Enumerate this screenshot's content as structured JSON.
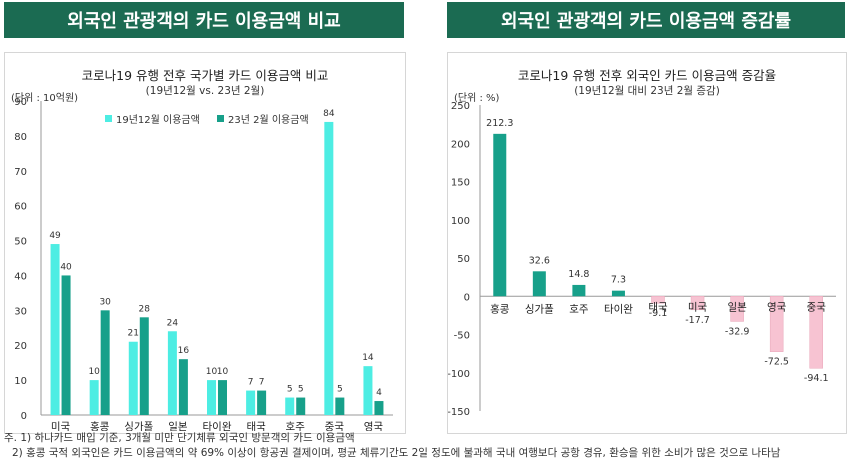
{
  "left": {
    "banner": "외국인 관광객의 카드 이용금액 비교",
    "chart_title": "코로나19 유행 전후 국가별 카드 이용금액 비교",
    "chart_subtitle": "(19년12월 vs. 23년 2월)",
    "unit": "(단위 : 10억원)"
  },
  "right": {
    "banner": "외국인 관광객의 카드 이용금액 증감률",
    "chart_title": "코로나19 유행 전후 외국인 카드 이용금액 증감율",
    "chart_subtitle": "(19년12월 대비 23년 2월 증감)",
    "unit": "(단위 : %)"
  },
  "notes": {
    "note1": "주. 1) 하나카드 매입 기준, 3개월 미만 단기체류 외국인 방문객의 카드 이용금액",
    "note2": "2) 홍콩 국적 외국인은 카드 이용금액의 약 69% 이상이 항공권 결제이며, 평균 체류기간도 2일 정도에 불과해 국내 여행보다 공항 경유, 환승을 위한 소비가 많은 것으로 나타남"
  },
  "colors": {
    "series1": "#4dede3",
    "series2": "#17a08a",
    "positive": "#17a08a",
    "negative": "#f7c3d2",
    "banner": "#1b6b52"
  },
  "chart_data": [
    {
      "type": "bar",
      "title": "코로나19 유행 전후 국가별 카드 이용금액 비교",
      "subtitle": "(19년12월 vs. 23년 2월)",
      "unit": "(단위 : 10억원)",
      "categories": [
        "미국",
        "홍콩",
        "싱가폴",
        "일본",
        "타이완",
        "태국",
        "호주",
        "중국",
        "영국"
      ],
      "series": [
        {
          "name": "19년12월 이용금액",
          "values": [
            49,
            10,
            21,
            24,
            10,
            7,
            5,
            84,
            14
          ]
        },
        {
          "name": "23년 2월 이용금액",
          "values": [
            40,
            30,
            28,
            16,
            10,
            7,
            5,
            5,
            4
          ]
        }
      ],
      "ylim": [
        0,
        90
      ],
      "yticks": [
        0,
        10,
        20,
        30,
        40,
        50,
        60,
        70,
        80,
        90
      ],
      "legend": "top"
    },
    {
      "type": "bar",
      "title": "코로나19 유행 전후 외국인 카드 이용금액 증감율",
      "subtitle": "(19년12월 대비 23년 2월 증감)",
      "unit": "(단위 : %)",
      "categories": [
        "홍콩",
        "싱가폴",
        "호주",
        "타이완",
        "태국",
        "미국",
        "일본",
        "영국",
        "중국"
      ],
      "values": [
        212.3,
        32.6,
        14.8,
        7.3,
        -9.1,
        -17.7,
        -32.9,
        -72.5,
        -94.1
      ],
      "value_labels": [
        "212.3",
        "32.6",
        "14.8",
        "7.3",
        "-9.1",
        "-17.7",
        "-32.9",
        "-72.5",
        "-94.1"
      ],
      "ylim": [
        -150,
        250
      ],
      "yticks": [
        -150,
        -100,
        -50,
        0,
        50,
        100,
        150,
        200,
        250
      ]
    }
  ]
}
